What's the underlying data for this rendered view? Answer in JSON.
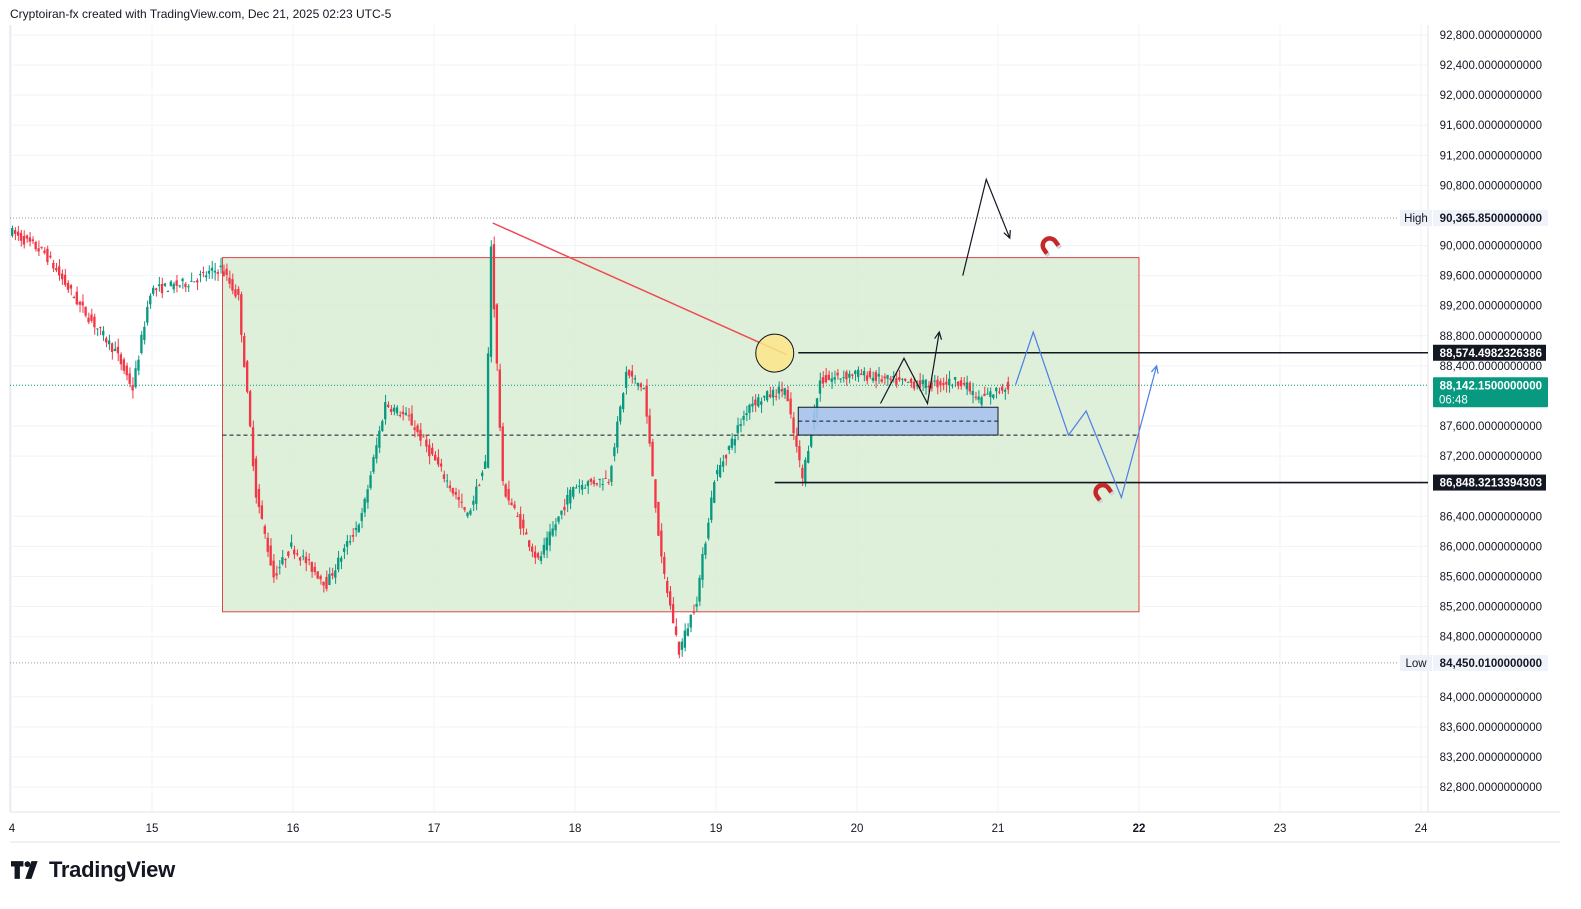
{
  "header": {
    "text": "Cryptoiran-fx created with TradingView.com, Dec 21, 2025 02:23 UTC-5"
  },
  "brand": {
    "name": "TradingView",
    "icon": "tradingview-logo-icon"
  },
  "colors": {
    "up": "#089981",
    "down": "#f23645",
    "zone_fill": "#d8ecd3",
    "zone_border": "#e0454b",
    "trendline": "#ef4a52",
    "price_badge": "#089981",
    "blue_box": "#a9c3ee",
    "projection": "#4d7ee8",
    "magnet": "#c62828"
  },
  "chart_data": {
    "type": "candlestick",
    "title": "",
    "xlabel": "",
    "ylabel": "",
    "ylim": [
      82600,
      93000
    ],
    "x_ticks": [
      "4",
      "15",
      "16",
      "17",
      "18",
      "19",
      "20",
      "21",
      "22",
      "23",
      "24"
    ],
    "x_ticks_bold": [
      "22"
    ],
    "y_ticks": [
      "92,800.0000000000",
      "92,400.0000000000",
      "92,000.0000000000",
      "91,600.0000000000",
      "91,200.0000000000",
      "90,800.0000000000",
      "90,000.0000000000",
      "89,600.0000000000",
      "89,200.0000000000",
      "88,800.0000000000",
      "88,400.0000000000",
      "87,600.0000000000",
      "87,200.0000000000",
      "86,400.0000000000",
      "86,000.0000000000",
      "85,600.0000000000",
      "85,200.0000000000",
      "84,800.0000000000",
      "84,000.0000000000",
      "83,600.0000000000",
      "83,200.0000000000",
      "82,800.0000000000"
    ],
    "high": {
      "label": "High",
      "value": "90,365.8500000000"
    },
    "low": {
      "label": "Low",
      "value": "84,450.0100000000"
    },
    "current_price": {
      "value": "88,142.1500000000",
      "countdown": "06:48"
    },
    "levels": [
      {
        "label": "88,574.4982326386",
        "value": 88574.5
      },
      {
        "label": "86,848.3213394303",
        "value": 86848.32
      }
    ],
    "range_zone": {
      "top": 89840,
      "bottom": 85130,
      "mid": 87480,
      "start": "Dec 15 12:00",
      "end": "Dec 22 00:00"
    },
    "series_path": [
      [
        "Dec 14 00:00",
        90200
      ],
      [
        "Dec 14 06:00",
        89900
      ],
      [
        "Dec 14 12:00",
        89200
      ],
      [
        "Dec 14 18:00",
        88600
      ],
      [
        "Dec 14 21:00",
        88100
      ],
      [
        "Dec 15 00:00",
        89400
      ],
      [
        "Dec 15 06:00",
        89500
      ],
      [
        "Dec 15 12:00",
        89700
      ],
      [
        "Dec 15 15:00",
        89300
      ],
      [
        "Dec 15 18:00",
        86700
      ],
      [
        "Dec 15 21:00",
        85600
      ],
      [
        "Dec 16 00:00",
        86000
      ],
      [
        "Dec 16 06:00",
        85500
      ],
      [
        "Dec 16 12:00",
        86400
      ],
      [
        "Dec 16 16:00",
        87900
      ],
      [
        "Dec 16 20:00",
        87700
      ],
      [
        "Dec 17 00:00",
        87200
      ],
      [
        "Dec 17 06:00",
        86400
      ],
      [
        "Dec 17 09:00",
        87100
      ],
      [
        "Dec 17 10:00",
        90000
      ],
      [
        "Dec 17 12:00",
        86800
      ],
      [
        "Dec 17 18:00",
        85800
      ],
      [
        "Dec 18 00:00",
        86800
      ],
      [
        "Dec 18 06:00",
        86900
      ],
      [
        "Dec 18 09:00",
        88300
      ],
      [
        "Dec 18 12:00",
        88100
      ],
      [
        "Dec 18 15:00",
        85800
      ],
      [
        "Dec 18 18:00",
        84600
      ],
      [
        "Dec 18 21:00",
        85300
      ],
      [
        "Dec 19 00:00",
        86900
      ],
      [
        "Dec 19 06:00",
        87900
      ],
      [
        "Dec 19 12:00",
        88100
      ],
      [
        "Dec 19 15:00",
        86900
      ],
      [
        "Dec 19 18:00",
        88200
      ],
      [
        "Dec 20 00:00",
        88300
      ],
      [
        "Dec 20 06:00",
        88200
      ],
      [
        "Dec 20 12:00",
        88150
      ],
      [
        "Dec 20 18:00",
        88200
      ],
      [
        "Dec 20 21:00",
        87950
      ],
      [
        "Dec 21 02:00",
        88140
      ]
    ],
    "annotations": {
      "trendline": [
        [
          "Dec 17 10:00",
          90300
        ],
        [
          "Dec 19 12:00",
          88550
        ]
      ],
      "circle_at": [
        "Dec 19 10:00",
        88570
      ],
      "demand_box": {
        "start": "Dec 19 14:00",
        "end": "Dec 21 00:00",
        "top": 87850,
        "bottom": 87480
      },
      "black_zigzag_up": [
        [
          "Dec 20 18:00",
          89600
        ],
        [
          "Dec 20 22:00",
          90880
        ],
        [
          "Dec 21 02:00",
          90100
        ]
      ],
      "black_zigzag_mid": [
        [
          "Dec 20 04:00",
          87900
        ],
        [
          "Dec 20 08:00",
          88500
        ],
        [
          "Dec 20 12:00",
          87900
        ],
        [
          "Dec 20 14:00",
          88850
        ]
      ],
      "blue_projection": [
        [
          "Dec 21 03:00",
          88150
        ],
        [
          "Dec 21 06:00",
          88850
        ],
        [
          "Dec 21 12:00",
          87480
        ],
        [
          "Dec 21 15:00",
          87800
        ],
        [
          "Dec 21 21:00",
          86650
        ],
        [
          "Dec 22 03:00",
          88400
        ]
      ],
      "magnets": [
        [
          "Dec 21 09:00",
          89980
        ],
        [
          "Dec 21 18:00",
          86700
        ]
      ]
    }
  }
}
